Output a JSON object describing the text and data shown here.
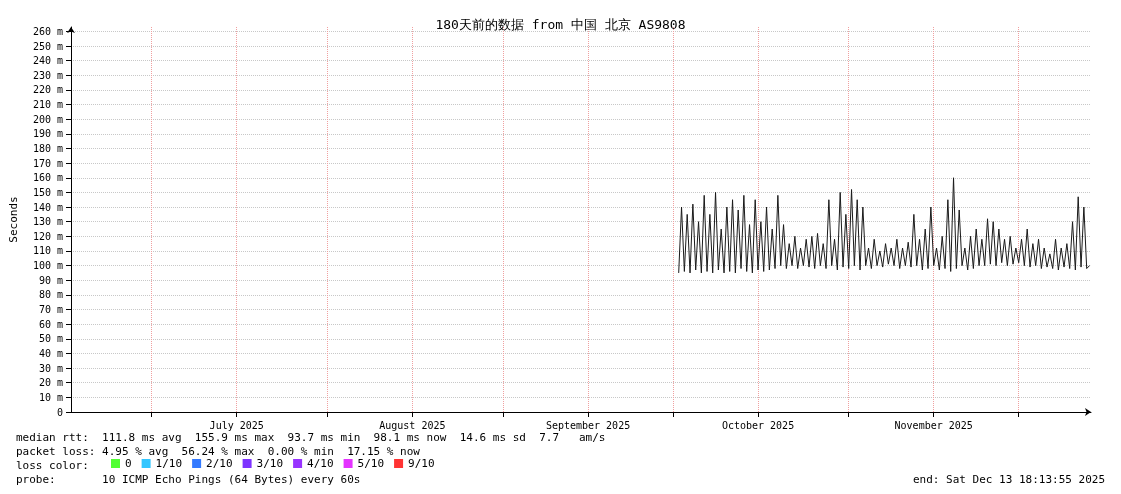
{
  "chart_data": {
    "type": "line",
    "title": "180天前的数据 from 中国 北京 AS9808",
    "ylabel": "Seconds",
    "legend_title": "loss color:",
    "legend": "bottom left",
    "grid": true,
    "marker": "none",
    "line_style": "solid",
    "xlim": [
      "2025-06-16T18:13",
      "2025-12-13T18:13"
    ],
    "xticks": [
      {
        "value": "2025-07-01",
        "label": null
      },
      {
        "value": "2025-07-16",
        "label": "July 2025"
      },
      {
        "value": "2025-08-01",
        "label": null
      },
      {
        "value": "2025-08-16",
        "label": "August 2025"
      },
      {
        "value": "2025-09-01",
        "label": null
      },
      {
        "value": "2025-09-16",
        "label": "September 2025"
      },
      {
        "value": "2025-10-01",
        "label": null
      },
      {
        "value": "2025-10-16",
        "label": "October 2025"
      },
      {
        "value": "2025-11-01",
        "label": null
      },
      {
        "value": "2025-11-16",
        "label": "November 2025"
      },
      {
        "value": "2025-12-01",
        "label": null
      }
    ],
    "ylim": [
      0,
      263
    ],
    "yticks": [
      0,
      {
        "value": 10,
        "label": "10 m"
      },
      {
        "value": 20,
        "label": "20 m"
      },
      {
        "value": 30,
        "label": "30 m"
      },
      {
        "value": 40,
        "label": "40 m"
      },
      {
        "value": 50,
        "label": "50 m"
      },
      {
        "value": 60,
        "label": "60 m"
      },
      {
        "value": 70,
        "label": "70 m"
      },
      {
        "value": 80,
        "label": "80 m"
      },
      {
        "value": 90,
        "label": "90 m"
      },
      {
        "value": 100,
        "label": "100 m"
      },
      {
        "value": 110,
        "label": "110 m"
      },
      {
        "value": 120,
        "label": "120 m"
      },
      {
        "value": 130,
        "label": "130 m"
      },
      {
        "value": 140,
        "label": "140 m"
      },
      {
        "value": 150,
        "label": "150 m"
      },
      {
        "value": 160,
        "label": "160 m"
      },
      {
        "value": 170,
        "label": "170 m"
      },
      {
        "value": 180,
        "label": "180 m"
      },
      {
        "value": 190,
        "label": "190 m"
      },
      {
        "value": 200,
        "label": "200 m"
      },
      {
        "value": 210,
        "label": "210 m"
      },
      {
        "value": 220,
        "label": "220 m"
      },
      {
        "value": 230,
        "label": "230 m"
      },
      {
        "value": 240,
        "label": "240 m"
      },
      {
        "value": 250,
        "label": "250 m"
      },
      {
        "value": 260,
        "label": "260 m"
      }
    ],
    "annotations": [
      "median rtt:  111.8 ms avg  155.9 ms max  93.7 ms min  98.1 ms now  14.6 ms sd  7.7   am/s",
      "packet loss: 4.95 % avg  56.24 % max  0.00 % min  17.15 % now",
      "probe:       10 ICMP Echo Pings (64 Bytes) every 60s",
      "end: Sat Dec 13 18:13:55 2025"
    ],
    "series": [
      {
        "color": "#1a1a1a",
        "x": [
          "2025-10-02T00:00",
          "2025-10-02T12:00",
          "2025-10-03T00:00",
          "2025-10-03T12:00",
          "2025-10-04T00:00",
          "2025-10-04T12:00",
          "2025-10-05T00:00",
          "2025-10-05T12:00",
          "2025-10-06T00:00",
          "2025-10-06T12:00",
          "2025-10-07T00:00",
          "2025-10-07T12:00",
          "2025-10-08T00:00",
          "2025-10-08T12:00",
          "2025-10-09T00:00",
          "2025-10-09T12:00",
          "2025-10-10T00:00",
          "2025-10-10T12:00",
          "2025-10-11T00:00",
          "2025-10-11T12:00",
          "2025-10-12T00:00",
          "2025-10-12T12:00",
          "2025-10-13T00:00",
          "2025-10-13T12:00",
          "2025-10-14T00:00",
          "2025-10-14T12:00",
          "2025-10-15T00:00",
          "2025-10-15T12:00",
          "2025-10-16T00:00",
          "2025-10-16T12:00",
          "2025-10-17T00:00",
          "2025-10-17T12:00",
          "2025-10-18T00:00",
          "2025-10-18T12:00",
          "2025-10-19T00:00",
          "2025-10-19T12:00",
          "2025-10-20T00:00",
          "2025-10-20T12:00",
          "2025-10-21T00:00",
          "2025-10-21T12:00",
          "2025-10-22T00:00",
          "2025-10-22T12:00",
          "2025-10-23T00:00",
          "2025-10-23T12:00",
          "2025-10-24T00:00",
          "2025-10-24T12:00",
          "2025-10-25T00:00",
          "2025-10-25T12:00",
          "2025-10-26T00:00",
          "2025-10-26T12:00",
          "2025-10-27T00:00",
          "2025-10-27T12:00",
          "2025-10-28T00:00",
          "2025-10-28T12:00",
          "2025-10-29T00:00",
          "2025-10-29T12:00",
          "2025-10-30T00:00",
          "2025-10-30T12:00",
          "2025-10-31T00:00",
          "2025-10-31T12:00",
          "2025-11-01T00:00",
          "2025-11-01T12:00",
          "2025-11-02T00:00",
          "2025-11-02T12:00",
          "2025-11-03T00:00",
          "2025-11-03T12:00",
          "2025-11-04T00:00",
          "2025-11-04T12:00",
          "2025-11-05T00:00",
          "2025-11-05T12:00",
          "2025-11-06T00:00",
          "2025-11-06T12:00",
          "2025-11-07T00:00",
          "2025-11-07T12:00",
          "2025-11-08T00:00",
          "2025-11-08T12:00",
          "2025-11-09T00:00",
          "2025-11-09T12:00",
          "2025-11-10T00:00",
          "2025-11-10T12:00",
          "2025-11-11T00:00",
          "2025-11-11T12:00",
          "2025-11-12T00:00",
          "2025-11-12T12:00",
          "2025-11-13T00:00",
          "2025-11-13T12:00",
          "2025-11-14T00:00",
          "2025-11-14T12:00",
          "2025-11-15T00:00",
          "2025-11-15T12:00",
          "2025-11-16T00:00",
          "2025-11-16T12:00",
          "2025-11-17T00:00",
          "2025-11-17T12:00",
          "2025-11-18T00:00",
          "2025-11-18T12:00",
          "2025-11-19T00:00",
          "2025-11-19T12:00",
          "2025-11-20T00:00",
          "2025-11-20T12:00",
          "2025-11-21T00:00",
          "2025-11-21T12:00",
          "2025-11-22T00:00",
          "2025-11-22T12:00",
          "2025-11-23T00:00",
          "2025-11-23T12:00",
          "2025-11-24T00:00",
          "2025-11-24T12:00",
          "2025-11-25T00:00",
          "2025-11-25T12:00",
          "2025-11-26T00:00",
          "2025-11-26T12:00",
          "2025-11-27T00:00",
          "2025-11-27T12:00",
          "2025-11-28T00:00",
          "2025-11-28T12:00",
          "2025-11-29T00:00",
          "2025-11-29T12:00",
          "2025-11-30T00:00",
          "2025-11-30T12:00",
          "2025-12-01T00:00",
          "2025-12-01T12:00",
          "2025-12-02T00:00",
          "2025-12-02T12:00",
          "2025-12-03T00:00",
          "2025-12-03T12:00",
          "2025-12-04T00:00",
          "2025-12-04T12:00",
          "2025-12-05T00:00",
          "2025-12-05T12:00",
          "2025-12-06T00:00",
          "2025-12-06T12:00",
          "2025-12-07T00:00",
          "2025-12-07T12:00",
          "2025-12-08T00:00",
          "2025-12-08T12:00",
          "2025-12-09T00:00",
          "2025-12-09T12:00",
          "2025-12-10T00:00",
          "2025-12-10T12:00",
          "2025-12-11T00:00",
          "2025-12-11T12:00",
          "2025-12-12T00:00",
          "2025-12-12T12:00",
          "2025-12-13T00:00",
          "2025-12-13T12:00"
        ],
        "values": [
          95,
          140,
          96,
          135,
          95,
          142,
          97,
          130,
          95,
          148,
          96,
          135,
          95,
          150,
          97,
          125,
          95,
          140,
          96,
          145,
          95,
          138,
          98,
          148,
          96,
          128,
          95,
          145,
          97,
          130,
          96,
          140,
          97,
          125,
          98,
          148,
          100,
          128,
          98,
          115,
          100,
          120,
          98,
          112,
          100,
          118,
          99,
          120,
          98,
          122,
          100,
          115,
          98,
          145,
          100,
          118,
          97,
          150,
          99,
          135,
          98,
          152,
          100,
          145,
          97,
          140,
          100,
          112,
          98,
          118,
          100,
          110,
          99,
          115,
          101,
          112,
          100,
          118,
          98,
          112,
          100,
          116,
          99,
          135,
          100,
          118,
          97,
          125,
          98,
          140,
          100,
          112,
          97,
          120,
          98,
          145,
          96,
          160,
          98,
          138,
          100,
          112,
          97,
          120,
          98,
          125,
          100,
          118,
          100,
          132,
          101,
          130,
          100,
          125,
          102,
          118,
          100,
          120,
          101,
          112,
          102,
          118,
          100,
          125,
          99,
          115,
          100,
          118,
          98,
          112,
          99,
          108,
          98,
          118,
          97,
          112,
          99,
          115,
          98,
          130,
          97,
          147,
          99,
          140,
          98,
          100
        ]
      },
      {
        "name": "0",
        "type": "scatter",
        "color": "#26ff00"
      },
      {
        "name": "1/10",
        "type": "scatter",
        "color": "#00b8ff"
      },
      {
        "name": "2/10",
        "type": "scatter",
        "color": "#0059ff"
      },
      {
        "name": "3/10",
        "type": "scatter",
        "color": "#5e00ff"
      },
      {
        "name": "4/10",
        "type": "scatter",
        "color": "#7e00ff"
      },
      {
        "name": "5/10",
        "type": "scatter",
        "color": "#dd00ff"
      },
      {
        "name": "9/10",
        "type": "scatter",
        "color": "#ff0000"
      }
    ]
  }
}
